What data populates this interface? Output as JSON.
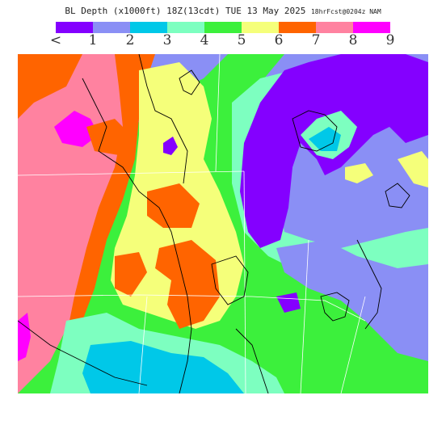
{
  "title": {
    "main": "BL Depth (x1000ft) 18Z(13cdt) TUE 13 May 2025",
    "sub": "18hrFcst@0204z NAM"
  },
  "legend": {
    "labels": [
      "<",
      "1",
      "2",
      "3",
      "4",
      "5",
      "6",
      "7",
      "8",
      "9"
    ],
    "colors": [
      "#8400ff",
      "#8a8ff5",
      "#00c8e8",
      "#7dffc0",
      "#3cf03c",
      "#f5ff7a",
      "#ff6400",
      "#ff82a0",
      "#ff00ff"
    ]
  },
  "map": {
    "background_class_color": "#8a8ff5",
    "border_color": "#000000",
    "grid_color": "#ffffff"
  }
}
